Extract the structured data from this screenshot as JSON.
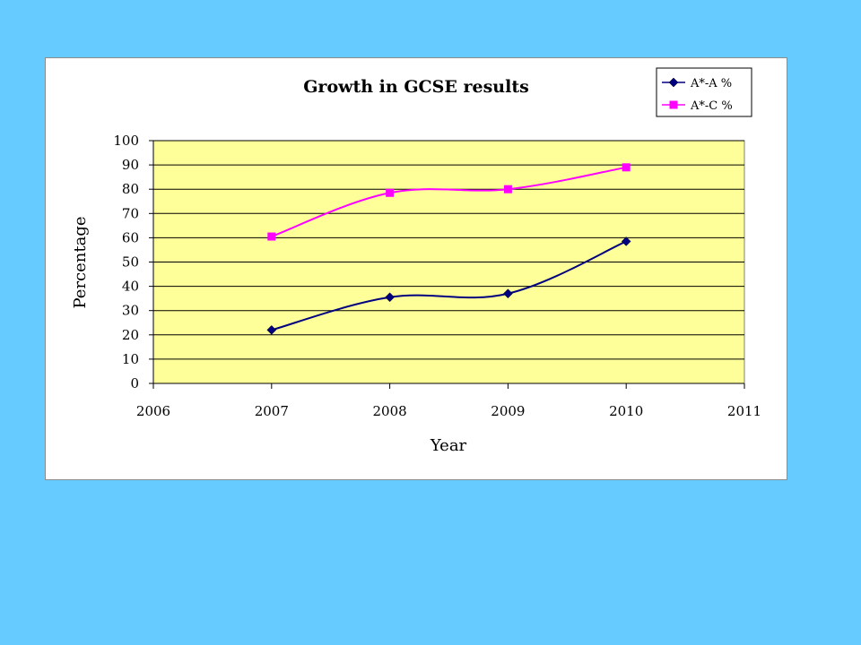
{
  "chart_data": {
    "type": "line",
    "title": "Growth in GCSE results",
    "xlabel": "Year",
    "ylabel": "Percentage",
    "xlim": [
      2006,
      2011
    ],
    "ylim": [
      0,
      100
    ],
    "x_ticks": [
      "2006",
      "2007",
      "2008",
      "2009",
      "2010",
      "2011"
    ],
    "y_ticks": [
      "0",
      "10",
      "20",
      "30",
      "40",
      "50",
      "60",
      "70",
      "80",
      "90",
      "100"
    ],
    "grid": true,
    "legend_position": "top-right",
    "plot_background": "#ffff99",
    "series": [
      {
        "name": "A*-A %",
        "color": "#000080",
        "marker": "diamond",
        "x": [
          2007,
          2008,
          2009,
          2010
        ],
        "values": [
          22,
          35.5,
          37,
          58.5
        ]
      },
      {
        "name": "A*-C %",
        "color": "#ff00ff",
        "marker": "square",
        "x": [
          2007,
          2008,
          2009,
          2010
        ],
        "values": [
          60.5,
          78.5,
          80,
          89
        ]
      }
    ]
  }
}
